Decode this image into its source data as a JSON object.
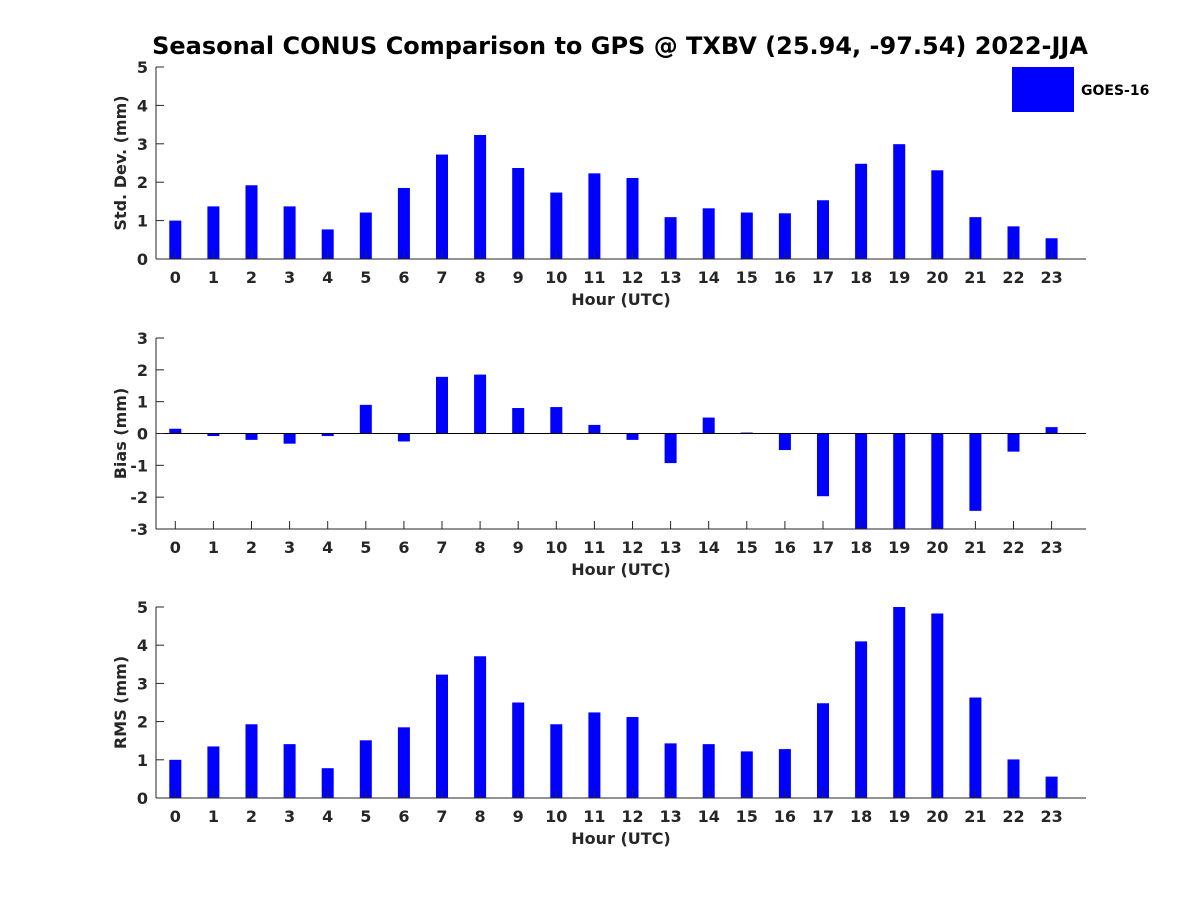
{
  "title": "Seasonal CONUS Comparison to GPS @ TXBV (25.94, -97.54) 2022-JJA",
  "legend": {
    "label": "GOES-16",
    "color": "#0000ff"
  },
  "chart_data": [
    {
      "type": "bar",
      "xlabel": "Hour (UTC)",
      "ylabel": "Std. Dev. (mm)",
      "ylim": [
        0,
        5
      ],
      "yticks": [
        0,
        1,
        2,
        3,
        4,
        5
      ],
      "categories": [
        "0",
        "1",
        "2",
        "3",
        "4",
        "5",
        "6",
        "7",
        "8",
        "9",
        "10",
        "11",
        "12",
        "13",
        "14",
        "15",
        "16",
        "17",
        "18",
        "19",
        "20",
        "21",
        "22",
        "23"
      ],
      "series": [
        {
          "name": "GOES-16",
          "color": "#0000ff",
          "values": [
            1.0,
            1.37,
            1.92,
            1.37,
            0.77,
            1.21,
            1.85,
            2.72,
            3.23,
            2.37,
            1.73,
            2.23,
            2.11,
            1.09,
            1.32,
            1.21,
            1.19,
            1.53,
            2.48,
            2.99,
            2.31,
            1.09,
            0.85,
            0.54
          ]
        }
      ],
      "legend": "top-right",
      "grid": false
    },
    {
      "type": "bar",
      "xlabel": "Hour (UTC)",
      "ylabel": "Bias (mm)",
      "ylim": [
        -3,
        3
      ],
      "yticks": [
        -3,
        -2,
        -1,
        0,
        1,
        2,
        3
      ],
      "zero_line": true,
      "categories": [
        "0",
        "1",
        "2",
        "3",
        "4",
        "5",
        "6",
        "7",
        "8",
        "9",
        "10",
        "11",
        "12",
        "13",
        "14",
        "15",
        "16",
        "17",
        "18",
        "19",
        "20",
        "21",
        "22",
        "23"
      ],
      "series": [
        {
          "name": "GOES-16",
          "color": "#0000ff",
          "values": [
            0.15,
            -0.08,
            -0.2,
            -0.32,
            -0.08,
            0.9,
            -0.25,
            1.78,
            1.85,
            0.8,
            0.83,
            0.27,
            -0.2,
            -0.93,
            0.5,
            0.03,
            -0.52,
            -1.97,
            -3.0,
            -3.0,
            -3.0,
            -2.43,
            -0.57,
            0.2
          ]
        }
      ],
      "grid": false
    },
    {
      "type": "bar",
      "xlabel": "Hour (UTC)",
      "ylabel": "RMS (mm)",
      "ylim": [
        0,
        5
      ],
      "yticks": [
        0,
        1,
        2,
        3,
        4,
        5
      ],
      "categories": [
        "0",
        "1",
        "2",
        "3",
        "4",
        "5",
        "6",
        "7",
        "8",
        "9",
        "10",
        "11",
        "12",
        "13",
        "14",
        "15",
        "16",
        "17",
        "18",
        "19",
        "20",
        "21",
        "22",
        "23"
      ],
      "series": [
        {
          "name": "GOES-16",
          "color": "#0000ff",
          "values": [
            1.0,
            1.35,
            1.93,
            1.41,
            0.78,
            1.51,
            1.85,
            3.23,
            3.71,
            2.5,
            1.93,
            2.24,
            2.12,
            1.43,
            1.41,
            1.22,
            1.28,
            2.48,
            4.1,
            5.0,
            4.83,
            2.63,
            1.01,
            0.56
          ]
        }
      ],
      "grid": false
    }
  ]
}
